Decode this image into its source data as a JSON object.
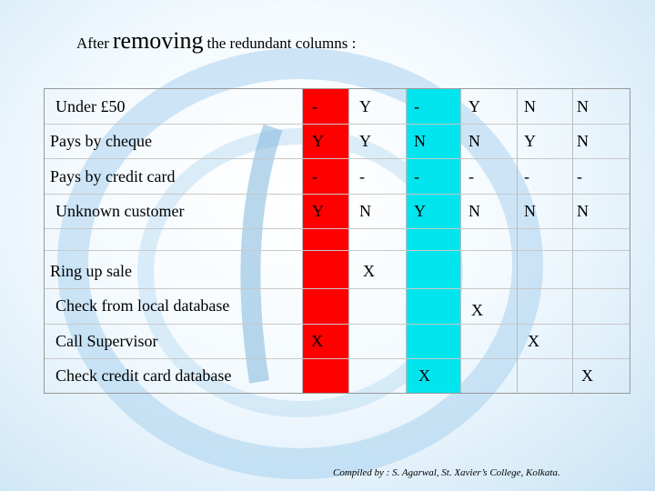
{
  "title": {
    "prefix": "After",
    "emph": "removing",
    "suffix": "the redundant columns :"
  },
  "conditions": [
    {
      "label": "Under £50",
      "values": [
        "-",
        "Y",
        "-",
        "Y",
        "N",
        "N"
      ]
    },
    {
      "label": "Pays by cheque",
      "values": [
        "Y",
        "Y",
        "N",
        "N",
        "Y",
        "N"
      ]
    },
    {
      "label": "Pays by credit card",
      "values": [
        "-",
        "-",
        "-",
        "-",
        "-",
        "-"
      ]
    },
    {
      "label": "Unknown customer",
      "values": [
        "Y",
        "N",
        "Y",
        "N",
        "N",
        "N"
      ]
    }
  ],
  "actions": [
    {
      "label": "Ring up sale",
      "values": [
        "",
        "X",
        "",
        "",
        "",
        ""
      ]
    },
    {
      "label": "Check from local database",
      "values": [
        "",
        "",
        "",
        "X",
        "",
        ""
      ]
    },
    {
      "label": "Call Supervisor",
      "values": [
        "X",
        "",
        "",
        "",
        "X",
        ""
      ]
    },
    {
      "label": "Check credit card database",
      "values": [
        "",
        "",
        "X",
        "",
        "",
        "X"
      ]
    }
  ],
  "colors": {
    "highlight_col1": "#ff0000",
    "highlight_col3": "#00e5ee"
  },
  "credit": "Compiled by : S. Agarwal, St. Xavier’s College, Kolkata."
}
